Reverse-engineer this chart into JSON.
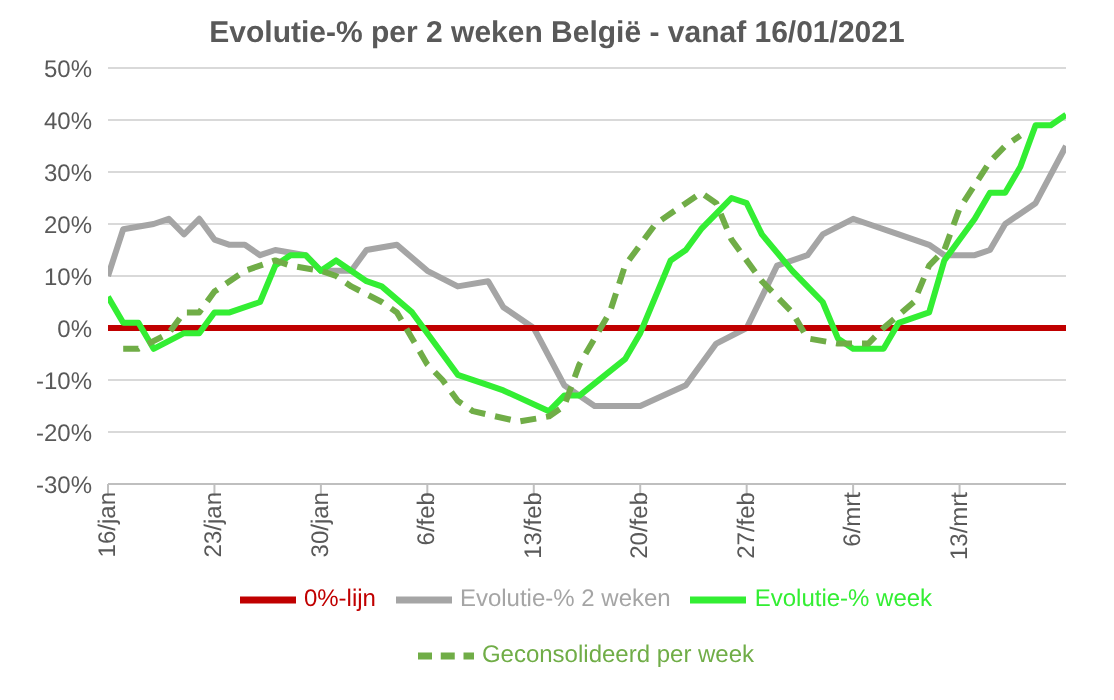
{
  "chart_data": {
    "type": "line",
    "title": "Evolutie-% per 2 weken België - vanaf 16/01/2021",
    "xlim": [
      "2021-01-16",
      "2021-03-20"
    ],
    "xticks": [
      {
        "value": "2021-01-16",
        "label": "16/jan"
      },
      {
        "value": "2021-01-23",
        "label": "23/jan"
      },
      {
        "value": "2021-01-30",
        "label": "30/jan"
      },
      {
        "value": "2021-02-06",
        "label": "6/feb"
      },
      {
        "value": "2021-02-13",
        "label": "13/feb"
      },
      {
        "value": "2021-02-20",
        "label": "20/feb"
      },
      {
        "value": "2021-02-27",
        "label": "27/feb"
      },
      {
        "value": "2021-03-06",
        "label": "6/mrt"
      },
      {
        "value": "2021-03-13",
        "label": "13/mrt"
      }
    ],
    "ylim": [
      -30,
      50
    ],
    "yticks": [
      {
        "value": -30,
        "label": "-30%"
      },
      {
        "value": -20,
        "label": "-20%"
      },
      {
        "value": -10,
        "label": "-10%"
      },
      {
        "value": 0,
        "label": "0%"
      },
      {
        "value": 10,
        "label": "10%"
      },
      {
        "value": 20,
        "label": "20%"
      },
      {
        "value": 30,
        "label": "30%"
      },
      {
        "value": 40,
        "label": "40%"
      },
      {
        "value": 50,
        "label": "50%"
      }
    ],
    "grid": "y",
    "legend": "bottom",
    "marker": "none",
    "series": [
      {
        "name": "Evolutie-% 2 weken",
        "color": "#a5a5a5",
        "line_style": "solid",
        "x": [
          "2021-01-16",
          "2021-01-17",
          "2021-01-19",
          "2021-01-20",
          "2021-01-21",
          "2021-01-22",
          "2021-01-23",
          "2021-01-24",
          "2021-01-25",
          "2021-01-26",
          "2021-01-27",
          "2021-01-29",
          "2021-01-30",
          "2021-02-01",
          "2021-02-02",
          "2021-02-04",
          "2021-02-06",
          "2021-02-08",
          "2021-02-10",
          "2021-02-11",
          "2021-02-13",
          "2021-02-15",
          "2021-02-17",
          "2021-02-20",
          "2021-02-23",
          "2021-02-25",
          "2021-02-27",
          "2021-03-01",
          "2021-03-03",
          "2021-03-04",
          "2021-03-06",
          "2021-03-07",
          "2021-03-09",
          "2021-03-11",
          "2021-03-12",
          "2021-03-14",
          "2021-03-15",
          "2021-03-16",
          "2021-03-18",
          "2021-03-20"
        ],
        "values": [
          10,
          19,
          20,
          21,
          18,
          21,
          17,
          16,
          16,
          14,
          15,
          14,
          11,
          11,
          15,
          16,
          11,
          8,
          9,
          4,
          0,
          -11,
          -15,
          -15,
          -11,
          -3,
          0,
          12,
          14,
          18,
          21,
          20,
          18,
          16,
          14,
          14,
          15,
          20,
          24,
          35
        ]
      },
      {
        "name": "0%-lijn",
        "color": "#c00000",
        "line_style": "solid",
        "x": [
          "2021-01-16",
          "2021-03-20"
        ],
        "values": [
          0,
          0
        ]
      },
      {
        "name": "Evolutie-% week",
        "color": "#33ee33",
        "line_style": "solid",
        "x": [
          "2021-01-16",
          "2021-01-17",
          "2021-01-18",
          "2021-01-19",
          "2021-01-21",
          "2021-01-22",
          "2021-01-23",
          "2021-01-24",
          "2021-01-26",
          "2021-01-27",
          "2021-01-28",
          "2021-01-29",
          "2021-01-30",
          "2021-01-31",
          "2021-02-02",
          "2021-02-03",
          "2021-02-05",
          "2021-02-06",
          "2021-02-07",
          "2021-02-08",
          "2021-02-10",
          "2021-02-11",
          "2021-02-14",
          "2021-02-15",
          "2021-02-16",
          "2021-02-19",
          "2021-02-20",
          "2021-02-22",
          "2021-02-23",
          "2021-02-24",
          "2021-02-25",
          "2021-02-26",
          "2021-02-27",
          "2021-02-28",
          "2021-03-02",
          "2021-03-04",
          "2021-03-05",
          "2021-03-06",
          "2021-03-08",
          "2021-03-09",
          "2021-03-11",
          "2021-03-12",
          "2021-03-14",
          "2021-03-15",
          "2021-03-16",
          "2021-03-17",
          "2021-03-18",
          "2021-03-19",
          "2021-03-20"
        ],
        "values": [
          6,
          1,
          1,
          -4,
          -1,
          -1,
          3,
          3,
          5,
          12,
          14,
          14,
          11,
          13,
          9,
          8,
          3,
          -1,
          -5,
          -9,
          -11,
          -12,
          -16,
          -13,
          -13,
          -6,
          -1,
          13,
          15,
          19,
          22,
          25,
          24,
          18,
          11,
          5,
          -2,
          -4,
          -4,
          1,
          3,
          13,
          21,
          26,
          26,
          31,
          39,
          39,
          41
        ]
      },
      {
        "name": "Geconsolideerd per week",
        "color": "#70ad47",
        "line_style": "dashed",
        "x": [
          "2021-01-17",
          "2021-01-18",
          "2021-01-20",
          "2021-01-21",
          "2021-01-22",
          "2021-01-23",
          "2021-01-25",
          "2021-01-27",
          "2021-01-28",
          "2021-01-30",
          "2021-01-31",
          "2021-02-01",
          "2021-02-03",
          "2021-02-04",
          "2021-02-05",
          "2021-02-06",
          "2021-02-07",
          "2021-02-08",
          "2021-02-09",
          "2021-02-12",
          "2021-02-14",
          "2021-02-15",
          "2021-02-16",
          "2021-02-18",
          "2021-02-19",
          "2021-02-21",
          "2021-02-22",
          "2021-02-24",
          "2021-02-25",
          "2021-02-26",
          "2021-02-28",
          "2021-03-01",
          "2021-03-02",
          "2021-03-03",
          "2021-03-05",
          "2021-03-07",
          "2021-03-08",
          "2021-03-10",
          "2021-03-11",
          "2021-03-12",
          "2021-03-13",
          "2021-03-15",
          "2021-03-16",
          "2021-03-17"
        ],
        "values": [
          -4,
          -4,
          -1,
          3,
          3,
          7,
          11,
          13,
          12,
          11,
          10,
          8,
          5,
          3,
          -2,
          -7,
          -10,
          -14,
          -16,
          -18,
          -17,
          -15,
          -7,
          3,
          12,
          20,
          22,
          26,
          24,
          17,
          9,
          6,
          3,
          -2,
          -3,
          -3,
          0,
          5,
          12,
          15,
          23,
          32,
          35,
          37
        ]
      }
    ]
  }
}
